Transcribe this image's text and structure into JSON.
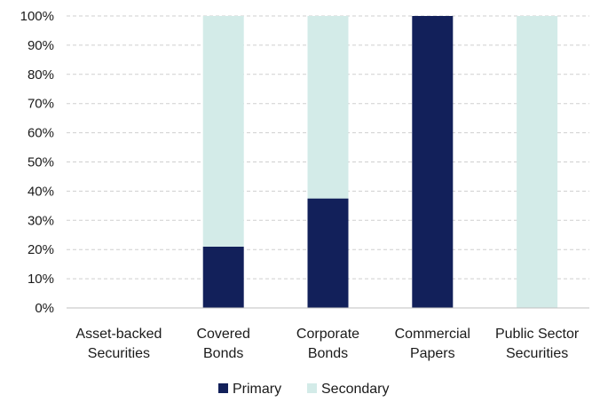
{
  "chart_data": {
    "type": "bar",
    "stacked": true,
    "categories": [
      [
        "Asset-backed",
        "Securities"
      ],
      [
        "Covered",
        "Bonds"
      ],
      [
        "Corporate",
        "Bonds"
      ],
      [
        "Commercial",
        "Papers"
      ],
      [
        "Public Sector",
        "Securities"
      ]
    ],
    "series": [
      {
        "name": "Primary",
        "color": "#12205a",
        "values": [
          0,
          21,
          37.5,
          100,
          0
        ]
      },
      {
        "name": "Secondary",
        "color": "#d3ebe8",
        "values": [
          0,
          79,
          62.5,
          0,
          100
        ]
      }
    ],
    "ylim": [
      0,
      100
    ],
    "yticks": [
      "0%",
      "10%",
      "20%",
      "30%",
      "40%",
      "50%",
      "60%",
      "70%",
      "80%",
      "90%",
      "100%"
    ],
    "grid": true,
    "grid_style": "dashed",
    "legend_position": "bottom"
  }
}
